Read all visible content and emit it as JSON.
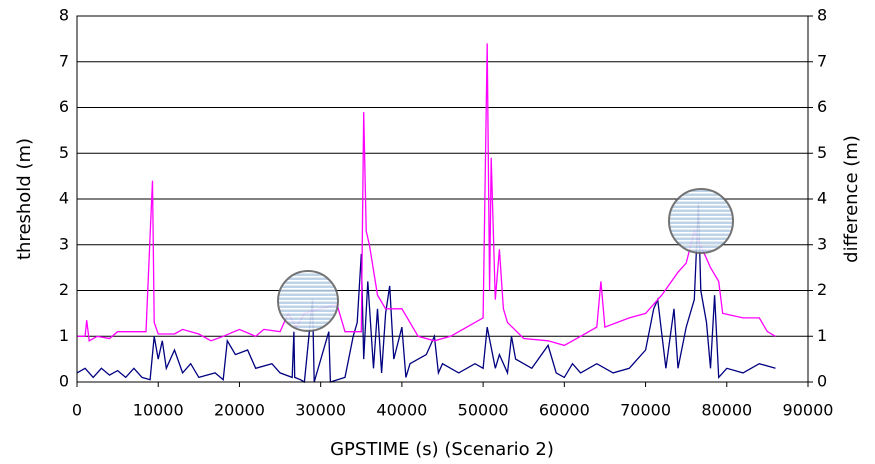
{
  "chart_data": {
    "type": "line",
    "xlabel": "GPSTIME (s) (Scenario 2)",
    "ylabel": "threshold (m)",
    "y2label": "difference (m)",
    "xlim": [
      0,
      90000
    ],
    "xticks": [
      0,
      10000,
      20000,
      30000,
      40000,
      50000,
      60000,
      70000,
      80000,
      90000
    ],
    "ylim": [
      0,
      8
    ],
    "yticks": [
      0,
      1,
      2,
      3,
      4,
      5,
      6,
      7,
      8
    ],
    "y2lim": [
      0,
      8
    ],
    "y2ticks": [
      0,
      1,
      2,
      3,
      4,
      5,
      6,
      7,
      8
    ],
    "grid": true,
    "series": [
      {
        "color": "#ff00ff",
        "x": [
          0,
          1000,
          1200,
          1500,
          2500,
          4000,
          5000,
          8500,
          9000,
          9300,
          9500,
          10000,
          12000,
          13000,
          15000,
          16500,
          18000,
          20000,
          22000,
          23000,
          25000,
          26000,
          27000,
          28000,
          30000,
          32000,
          33000,
          35000,
          35300,
          35600,
          36000,
          37000,
          38000,
          40000,
          42000,
          44000,
          46000,
          48000,
          50000,
          50500,
          50800,
          51000,
          51500,
          52000,
          52500,
          53000,
          55000,
          58000,
          60000,
          62000,
          64000,
          64500,
          65000,
          68000,
          70000,
          72000,
          74000,
          75000,
          76000,
          77000,
          78000,
          79000,
          79500,
          82000,
          84000,
          85000,
          86000
        ],
        "values": [
          1.0,
          1.0,
          1.35,
          0.9,
          1.0,
          0.95,
          1.1,
          1.1,
          3.2,
          4.4,
          1.3,
          1.05,
          1.05,
          1.15,
          1.05,
          0.9,
          1.0,
          1.15,
          1.0,
          1.15,
          1.1,
          1.5,
          1.2,
          1.5,
          1.6,
          1.7,
          1.1,
          1.1,
          5.9,
          3.3,
          3.0,
          1.9,
          1.6,
          1.6,
          1.0,
          0.9,
          1.0,
          1.2,
          1.4,
          7.4,
          2.0,
          4.9,
          1.8,
          2.9,
          1.6,
          1.3,
          0.95,
          0.9,
          0.8,
          1.0,
          1.2,
          2.2,
          1.2,
          1.4,
          1.5,
          1.9,
          2.4,
          2.6,
          3.3,
          2.9,
          2.5,
          2.2,
          1.5,
          1.4,
          1.4,
          1.1,
          1.0
        ]
      },
      {
        "color": "#000080",
        "axis": "y2",
        "x": [
          0,
          1000,
          2000,
          3000,
          4000,
          5000,
          6000,
          7000,
          8000,
          9000,
          9500,
          10000,
          10500,
          11000,
          12000,
          13000,
          14000,
          15000,
          17000,
          18000,
          18500,
          19500,
          21000,
          22000,
          24000,
          25000,
          26500,
          26700,
          26800,
          27500,
          28000,
          29000,
          29200,
          31000,
          31200,
          33000,
          34000,
          34500,
          35000,
          35300,
          35800,
          36500,
          37000,
          37500,
          38000,
          38500,
          39000,
          40000,
          40500,
          41000,
          43000,
          44000,
          44500,
          45000,
          47000,
          49000,
          50000,
          50500,
          51500,
          52000,
          53000,
          53500,
          54000,
          56000,
          58000,
          59000,
          60000,
          61000,
          62000,
          64000,
          66000,
          68000,
          70000,
          71000,
          71500,
          72500,
          73500,
          74000,
          75000,
          76000,
          76500,
          76800,
          77500,
          78000,
          78500,
          79000,
          80000,
          82000,
          84000,
          86000
        ],
        "values": [
          0.2,
          0.3,
          0.1,
          0.3,
          0.15,
          0.25,
          0.1,
          0.3,
          0.1,
          0.05,
          1.0,
          0.5,
          0.9,
          0.3,
          0.7,
          0.2,
          0.4,
          0.1,
          0.2,
          0.05,
          0.9,
          0.6,
          0.7,
          0.3,
          0.4,
          0.2,
          0.1,
          1.1,
          0.1,
          0.05,
          0.0,
          1.8,
          0.0,
          1.1,
          0.0,
          0.1,
          1.0,
          1.3,
          2.8,
          0.5,
          2.2,
          0.3,
          1.6,
          0.2,
          1.5,
          2.1,
          0.5,
          1.2,
          0.1,
          0.4,
          0.6,
          1.0,
          0.2,
          0.4,
          0.2,
          0.4,
          0.3,
          1.2,
          0.3,
          0.6,
          0.2,
          1.0,
          0.5,
          0.3,
          0.8,
          0.2,
          0.1,
          0.4,
          0.2,
          0.4,
          0.2,
          0.3,
          0.7,
          1.6,
          1.8,
          0.3,
          1.6,
          0.3,
          1.2,
          1.8,
          3.9,
          2.0,
          1.3,
          0.3,
          1.9,
          0.1,
          0.3,
          0.2,
          0.4,
          0.3
        ]
      }
    ]
  }
}
